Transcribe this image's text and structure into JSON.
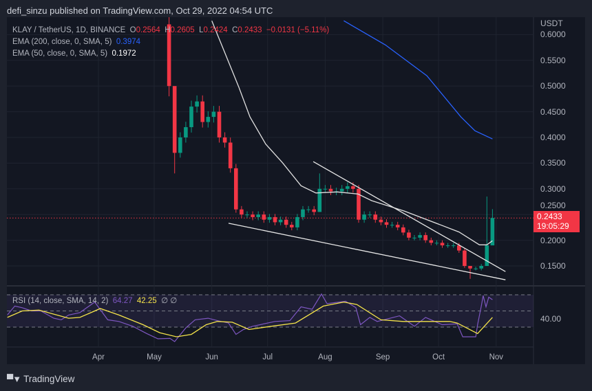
{
  "header": {
    "publish_text": "defi_sinzu published on TradingView.com, Oct 29, 2022 04:54 UTC"
  },
  "legend": {
    "symbol": "KLAY / TetherUS, 1D, BINANCE",
    "o_label": "O",
    "o": "0.2564",
    "h_label": "H",
    "h": "0.2605",
    "l_label": "L",
    "l": "0.2424",
    "c_label": "C",
    "c": "0.2433",
    "change": "−0.0131 (−5.11%)",
    "ema200_label": "EMA (200, close, 0, SMA, 5)",
    "ema200_value": "0.3974",
    "ema50_label": "EMA (50, close, 0, SMA, 5)",
    "ema50_value": "0.1972",
    "rsi_label": "RSI (14, close, SMA, 14, 2)",
    "rsi_value": "64.27",
    "rsi_sma_value": "42.25",
    "rsi_extra": "∅ ∅"
  },
  "price_axis": {
    "currency": "USDT",
    "ticks": [
      "0.6000",
      "0.5500",
      "0.5000",
      "0.4500",
      "0.4000",
      "0.3500",
      "0.3000",
      "0.2500",
      "0.2000",
      "0.1500"
    ],
    "rsi_tick": "40.00"
  },
  "last_price": {
    "value": "0.2433",
    "countdown": "19:05:29"
  },
  "footer": {
    "brand": "TradingView",
    "brand_mark": "17"
  },
  "colors": {
    "up": "#089981",
    "down": "#f23645",
    "ema200": "#2962ff",
    "ema50": "#e0e0e0",
    "rsi": "#7e57c2",
    "rsi_sma": "#f5e44a",
    "bg": "#131722"
  },
  "chart_data": {
    "type": "candlestick",
    "title": "KLAY / TetherUS, 1D, BINANCE",
    "x_unit": "days since Apr 1 2022",
    "x_ticks": [
      {
        "label": "Apr",
        "day": 0
      },
      {
        "label": "May",
        "day": 30
      },
      {
        "label": "Jun",
        "day": 61
      },
      {
        "label": "Jul",
        "day": 91
      },
      {
        "label": "Aug",
        "day": 122
      },
      {
        "label": "Sep",
        "day": 153
      },
      {
        "label": "Oct",
        "day": 183
      },
      {
        "label": "Nov",
        "day": 214
      }
    ],
    "ylim": [
      0.12,
      0.627
    ],
    "y_ticks": [
      0.6,
      0.55,
      0.5,
      0.45,
      0.4,
      0.35,
      0.3,
      0.25,
      0.2,
      0.15
    ],
    "first_open": 0.62,
    "candles_day_close": [
      [
        38,
        0.5
      ],
      [
        41,
        0.37
      ],
      [
        44,
        0.4
      ],
      [
        47,
        0.42
      ],
      [
        50,
        0.46
      ],
      [
        53,
        0.47
      ],
      [
        56,
        0.43
      ],
      [
        59,
        0.44
      ],
      [
        62,
        0.45
      ],
      [
        65,
        0.4
      ],
      [
        68,
        0.39
      ],
      [
        71,
        0.34
      ],
      [
        74,
        0.26
      ],
      [
        77,
        0.25
      ],
      [
        80,
        0.25
      ],
      [
        83,
        0.245
      ],
      [
        86,
        0.25
      ],
      [
        89,
        0.24
      ],
      [
        92,
        0.245
      ],
      [
        95,
        0.235
      ],
      [
        98,
        0.24
      ],
      [
        101,
        0.23
      ],
      [
        104,
        0.225
      ],
      [
        107,
        0.245
      ],
      [
        110,
        0.26
      ],
      [
        113,
        0.26
      ],
      [
        116,
        0.255
      ],
      [
        119,
        0.3
      ],
      [
        122,
        0.3
      ],
      [
        125,
        0.295
      ],
      [
        128,
        0.295
      ],
      [
        131,
        0.3
      ],
      [
        134,
        0.305
      ],
      [
        137,
        0.3
      ],
      [
        140,
        0.24
      ],
      [
        143,
        0.25
      ],
      [
        146,
        0.25
      ],
      [
        149,
        0.24
      ],
      [
        152,
        0.235
      ],
      [
        155,
        0.23
      ],
      [
        158,
        0.23
      ],
      [
        161,
        0.225
      ],
      [
        164,
        0.215
      ],
      [
        167,
        0.205
      ],
      [
        170,
        0.205
      ],
      [
        173,
        0.21
      ],
      [
        176,
        0.2
      ],
      [
        179,
        0.195
      ],
      [
        182,
        0.195
      ],
      [
        185,
        0.19
      ],
      [
        188,
        0.19
      ],
      [
        191,
        0.19
      ],
      [
        194,
        0.18
      ],
      [
        197,
        0.15
      ],
      [
        200,
        0.145
      ],
      [
        203,
        0.145
      ],
      [
        206,
        0.15
      ],
      [
        209,
        0.19
      ],
      [
        212,
        0.2433
      ]
    ],
    "notable_wicks": [
      {
        "day": 38,
        "high": 0.65,
        "low": 0.48
      },
      {
        "day": 41,
        "high": 0.49,
        "low": 0.33
      },
      {
        "day": 119,
        "high": 0.33,
        "low": 0.255
      },
      {
        "day": 200,
        "high": 0.15,
        "low": 0.125
      },
      {
        "day": 209,
        "high": 0.285,
        "low": 0.15
      },
      {
        "day": 212,
        "high": 0.2605,
        "low": 0.2424
      }
    ],
    "ema50": [
      [
        61,
        0.627
      ],
      [
        70,
        0.547
      ],
      [
        75.5,
        0.498
      ],
      [
        81.5,
        0.44
      ],
      [
        90,
        0.387
      ],
      [
        99,
        0.351
      ],
      [
        109,
        0.306
      ],
      [
        117,
        0.292
      ],
      [
        128.5,
        0.294
      ],
      [
        139.6,
        0.29
      ],
      [
        147,
        0.277
      ],
      [
        164.4,
        0.257
      ],
      [
        184,
        0.23
      ],
      [
        194,
        0.216
      ],
      [
        205,
        0.191
      ],
      [
        209,
        0.191
      ],
      [
        212,
        0.199
      ]
    ],
    "ema200": [
      [
        132,
        0.627
      ],
      [
        154.4,
        0.58
      ],
      [
        176.7,
        0.52
      ],
      [
        195,
        0.44
      ],
      [
        202.6,
        0.413
      ],
      [
        212,
        0.397
      ]
    ],
    "trendlines": [
      {
        "name": "upper",
        "from": [
          115.6,
          0.353
        ],
        "to": [
          219,
          0.139
        ]
      },
      {
        "name": "lower",
        "from": [
          70,
          0.233
        ],
        "to": [
          219,
          0.123
        ]
      }
    ],
    "last_price_line": 0.2433,
    "rsi": {
      "bands": [
        70,
        50,
        30
      ],
      "series": [
        [
          -49,
          45
        ],
        [
          -45,
          56
        ],
        [
          -41,
          54
        ],
        [
          -36,
          50
        ],
        [
          -31,
          50
        ],
        [
          -24,
          41
        ],
        [
          -20,
          39
        ],
        [
          -16,
          45
        ],
        [
          -10,
          48
        ],
        [
          -2,
          61
        ],
        [
          1.5,
          50
        ],
        [
          5,
          39
        ],
        [
          11,
          37
        ],
        [
          18.5,
          31
        ],
        [
          26,
          22
        ],
        [
          32,
          15.5
        ],
        [
          38.5,
          16
        ],
        [
          41,
          12
        ],
        [
          47,
          29
        ],
        [
          52,
          39
        ],
        [
          59,
          41
        ],
        [
          64,
          38
        ],
        [
          70,
          35
        ],
        [
          74,
          21
        ],
        [
          78,
          27
        ],
        [
          83,
          31
        ],
        [
          95,
          37
        ],
        [
          103,
          38
        ],
        [
          109,
          55
        ],
        [
          115,
          52
        ],
        [
          120,
          71
        ],
        [
          123,
          59
        ],
        [
          133,
          62
        ],
        [
          138.5,
          54
        ],
        [
          141,
          33
        ],
        [
          146,
          42
        ],
        [
          150,
          37
        ],
        [
          162,
          44
        ],
        [
          170,
          31
        ],
        [
          176,
          42
        ],
        [
          185,
          33
        ],
        [
          193,
          34
        ],
        [
          196,
          18
        ],
        [
          203,
          18
        ],
        [
          204,
          33
        ],
        [
          206,
          56
        ],
        [
          207,
          69
        ],
        [
          208.5,
          55
        ],
        [
          210,
          67
        ],
        [
          212,
          64
        ]
      ],
      "sma": [
        [
          -49,
          42
        ],
        [
          -41,
          50
        ],
        [
          -32,
          51
        ],
        [
          -16,
          41
        ],
        [
          -10,
          42
        ],
        [
          1,
          53
        ],
        [
          11,
          45
        ],
        [
          24,
          33
        ],
        [
          33,
          23
        ],
        [
          42,
          18
        ],
        [
          50,
          21
        ],
        [
          58,
          33
        ],
        [
          64,
          37
        ],
        [
          72,
          36
        ],
        [
          81,
          27
        ],
        [
          93,
          31
        ],
        [
          106,
          35
        ],
        [
          121,
          56
        ],
        [
          132,
          61
        ],
        [
          139,
          58
        ],
        [
          152,
          39
        ],
        [
          164,
          37
        ],
        [
          189,
          37
        ],
        [
          193,
          35
        ],
        [
          204,
          22
        ],
        [
          212,
          42
        ]
      ]
    }
  }
}
